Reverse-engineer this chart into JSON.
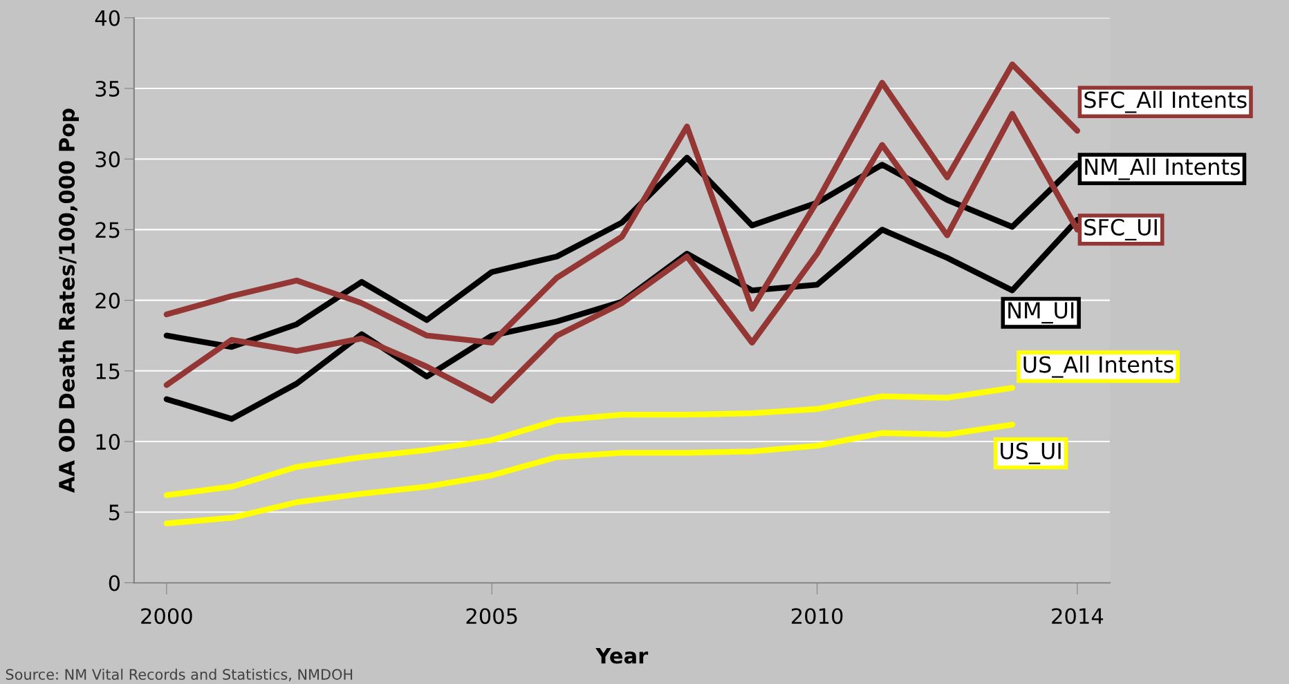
{
  "chart_data": {
    "type": "line",
    "ylabel": "AA OD Death Rates/100,000 Pop",
    "xlabel": "Year",
    "annotations": [
      "Source: NM Vital Records and Statistics, NMDOH"
    ],
    "x": [
      2000,
      2001,
      2002,
      2003,
      2004,
      2005,
      2006,
      2007,
      2008,
      2009,
      2010,
      2011,
      2012,
      2013,
      2014
    ],
    "xlim": [
      1999.5,
      2014.5
    ],
    "xticks": [
      2000,
      2005,
      2010,
      2014
    ],
    "ylim": [
      0,
      40
    ],
    "yticks": [
      0,
      5,
      10,
      15,
      20,
      25,
      30,
      35,
      40
    ],
    "grid": "y",
    "legend": false,
    "marker": "none",
    "line_style": "solid",
    "series": [
      {
        "name": "NM_All Intents",
        "color": "#000000",
        "values": [
          17.5,
          16.7,
          18.3,
          21.3,
          18.6,
          22.0,
          23.1,
          25.5,
          30.1,
          25.3,
          26.9,
          29.6,
          27.1,
          25.2,
          29.7
        ]
      },
      {
        "name": "NM_UI",
        "color": "#000000",
        "values": [
          13.0,
          11.6,
          14.1,
          17.6,
          14.6,
          17.5,
          18.5,
          19.9,
          23.3,
          20.7,
          21.1,
          25.0,
          23.0,
          20.7,
          25.7
        ]
      },
      {
        "name": "SFC_All Intents",
        "color": "#943634",
        "values": [
          19.0,
          20.3,
          21.4,
          19.8,
          17.5,
          17.0,
          21.6,
          24.5,
          32.3,
          19.4,
          27.0,
          35.4,
          28.7,
          36.7,
          32.0
        ]
      },
      {
        "name": "SFC_UI",
        "color": "#943634",
        "values": [
          14.0,
          17.2,
          16.4,
          17.3,
          15.3,
          12.9,
          17.5,
          19.8,
          23.1,
          17.0,
          23.3,
          31.0,
          24.6,
          33.2,
          25.0
        ]
      },
      {
        "name": "US_All Intents",
        "color": "#ffff00",
        "values": [
          6.2,
          6.8,
          8.2,
          8.9,
          9.4,
          10.1,
          11.5,
          11.9,
          11.9,
          12.0,
          12.3,
          13.2,
          13.1,
          13.8,
          null
        ]
      },
      {
        "name": "US_UI",
        "color": "#ffff00",
        "values": [
          4.2,
          4.6,
          5.7,
          6.3,
          6.8,
          7.6,
          8.9,
          9.2,
          9.2,
          9.3,
          9.7,
          10.6,
          10.5,
          11.2,
          null
        ]
      }
    ]
  }
}
